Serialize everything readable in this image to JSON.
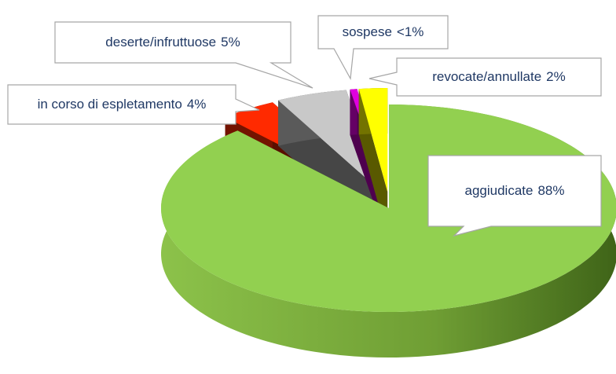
{
  "chart_data": {
    "type": "pie3d",
    "categories": [
      "aggiudicate",
      "in corso di espletamento",
      "deserte/infruttuose",
      "sospese",
      "revocate/annullate"
    ],
    "values": [
      88,
      4,
      5,
      0.5,
      2
    ],
    "value_labels": [
      "88%",
      "4%",
      "5%",
      "<1%",
      "2%"
    ],
    "colors": [
      "#92d050",
      "#ff2a00",
      "#c8c8c8",
      "#e000e0",
      "#ffff00"
    ]
  }
}
